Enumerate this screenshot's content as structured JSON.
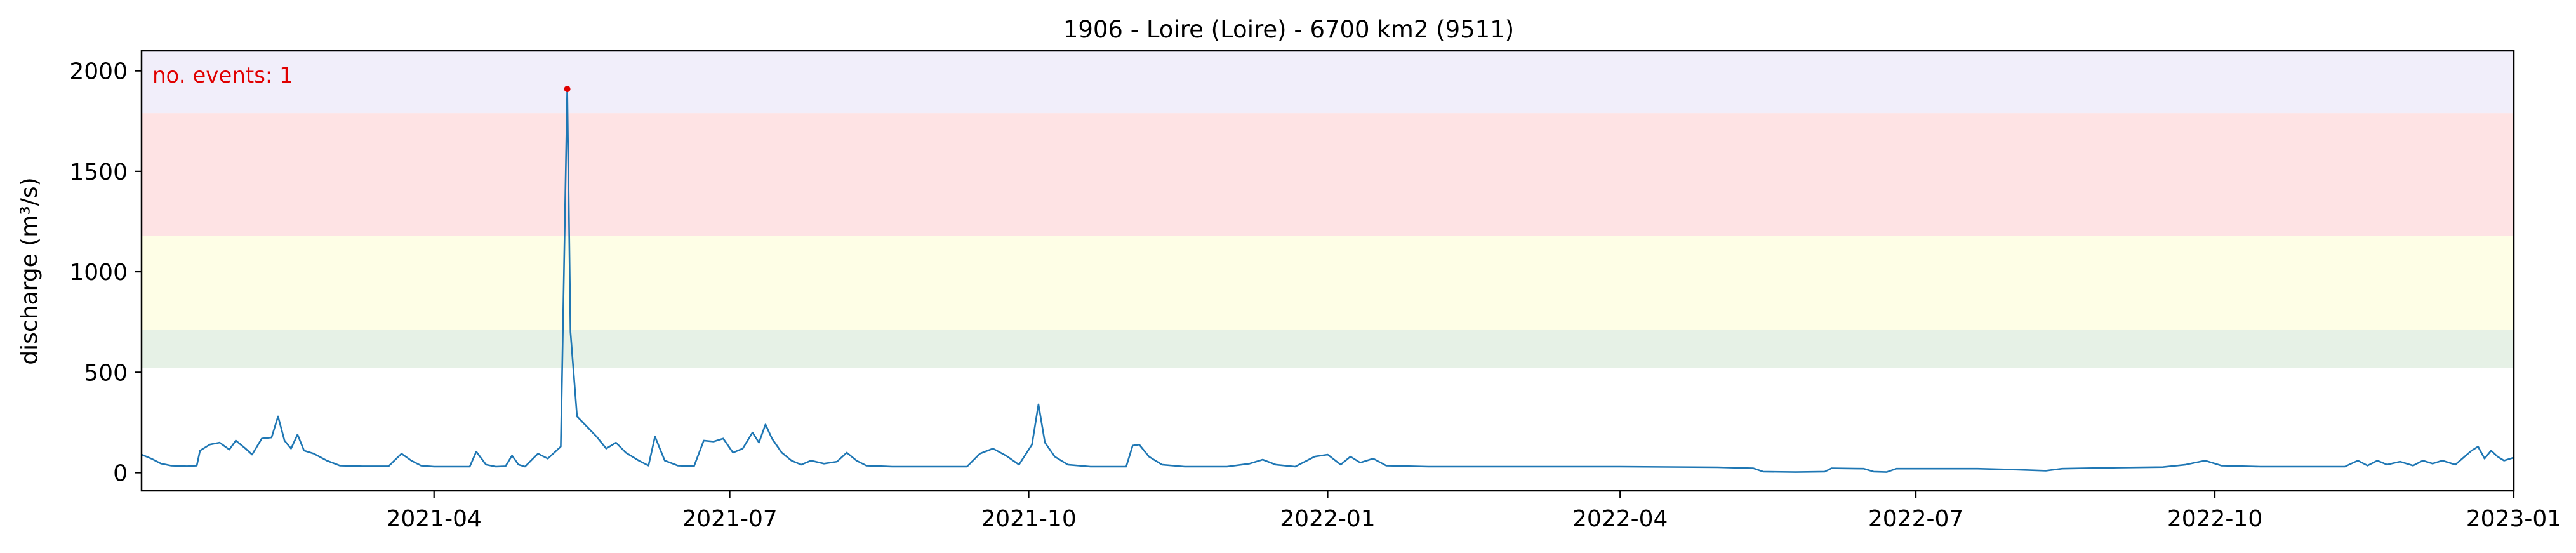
{
  "chart_data": {
    "type": "line",
    "title": "1906 - Loire (Loire) - 6700 km2 (9511)",
    "xlabel": "",
    "ylabel": "discharge (m³/s)",
    "x_range": [
      "2021-01-01",
      "2023-01-01"
    ],
    "ylim": [
      -90,
      2100
    ],
    "y_ticks": [
      0,
      500,
      1000,
      1500,
      2000
    ],
    "x_ticks": [
      "2021-04-01",
      "2021-07-01",
      "2021-10-01",
      "2022-01-01",
      "2022-04-01",
      "2022-07-01",
      "2022-10-01",
      "2023-01-01"
    ],
    "x_tick_labels": [
      "2021-04",
      "2021-07",
      "2021-10",
      "2022-01",
      "2022-04",
      "2022-07",
      "2022-10",
      "2023-01"
    ],
    "grid": false,
    "bands": [
      {
        "from": 520,
        "to": 710,
        "color": "#e6f1e6"
      },
      {
        "from": 710,
        "to": 1180,
        "color": "#fefee6"
      },
      {
        "from": 1180,
        "to": 1790,
        "color": "#fee3e4"
      },
      {
        "from": 1790,
        "to": 2100,
        "color": "#f1eefa"
      }
    ],
    "annotation": {
      "text": "no. events: 1",
      "color": "#e00000",
      "position": "top-left"
    },
    "event_points": [
      {
        "date": "2021-05-12",
        "value": 1910
      }
    ],
    "series": [
      {
        "color": "#1f77b4",
        "points": [
          [
            "2021-01-01",
            90
          ],
          [
            "2021-01-04",
            70
          ],
          [
            "2021-01-07",
            45
          ],
          [
            "2021-01-10",
            35
          ],
          [
            "2021-01-15",
            32
          ],
          [
            "2021-01-18",
            35
          ],
          [
            "2021-01-19",
            110
          ],
          [
            "2021-01-22",
            140
          ],
          [
            "2021-01-25",
            150
          ],
          [
            "2021-01-28",
            115
          ],
          [
            "2021-01-30",
            160
          ],
          [
            "2021-02-02",
            120
          ],
          [
            "2021-02-04",
            90
          ],
          [
            "2021-02-07",
            170
          ],
          [
            "2021-02-10",
            175
          ],
          [
            "2021-02-12",
            280
          ],
          [
            "2021-02-14",
            160
          ],
          [
            "2021-02-16",
            120
          ],
          [
            "2021-02-18",
            190
          ],
          [
            "2021-02-20",
            110
          ],
          [
            "2021-02-23",
            95
          ],
          [
            "2021-02-27",
            60
          ],
          [
            "2021-03-03",
            35
          ],
          [
            "2021-03-10",
            32
          ],
          [
            "2021-03-18",
            32
          ],
          [
            "2021-03-22",
            95
          ],
          [
            "2021-03-25",
            60
          ],
          [
            "2021-03-28",
            35
          ],
          [
            "2021-04-01",
            30
          ],
          [
            "2021-04-12",
            30
          ],
          [
            "2021-04-14",
            105
          ],
          [
            "2021-04-17",
            40
          ],
          [
            "2021-04-20",
            30
          ],
          [
            "2021-04-23",
            32
          ],
          [
            "2021-04-25",
            85
          ],
          [
            "2021-04-27",
            40
          ],
          [
            "2021-04-29",
            30
          ],
          [
            "2021-05-03",
            95
          ],
          [
            "2021-05-06",
            70
          ],
          [
            "2021-05-08",
            100
          ],
          [
            "2021-05-10",
            130
          ],
          [
            "2021-05-12",
            1910
          ],
          [
            "2021-05-13",
            700
          ],
          [
            "2021-05-15",
            280
          ],
          [
            "2021-05-18",
            230
          ],
          [
            "2021-05-21",
            180
          ],
          [
            "2021-05-24",
            120
          ],
          [
            "2021-05-27",
            150
          ],
          [
            "2021-05-30",
            100
          ],
          [
            "2021-06-03",
            60
          ],
          [
            "2021-06-06",
            35
          ],
          [
            "2021-06-08",
            180
          ],
          [
            "2021-06-11",
            60
          ],
          [
            "2021-06-15",
            35
          ],
          [
            "2021-06-20",
            32
          ],
          [
            "2021-06-23",
            160
          ],
          [
            "2021-06-26",
            155
          ],
          [
            "2021-06-29",
            170
          ],
          [
            "2021-07-02",
            100
          ],
          [
            "2021-07-05",
            120
          ],
          [
            "2021-07-08",
            200
          ],
          [
            "2021-07-10",
            150
          ],
          [
            "2021-07-12",
            240
          ],
          [
            "2021-07-14",
            170
          ],
          [
            "2021-07-17",
            100
          ],
          [
            "2021-07-20",
            60
          ],
          [
            "2021-07-23",
            40
          ],
          [
            "2021-07-26",
            60
          ],
          [
            "2021-07-30",
            45
          ],
          [
            "2021-08-03",
            55
          ],
          [
            "2021-08-06",
            100
          ],
          [
            "2021-08-09",
            60
          ],
          [
            "2021-08-12",
            35
          ],
          [
            "2021-08-20",
            30
          ],
          [
            "2021-09-05",
            30
          ],
          [
            "2021-09-12",
            30
          ],
          [
            "2021-09-16",
            95
          ],
          [
            "2021-09-20",
            120
          ],
          [
            "2021-09-24",
            85
          ],
          [
            "2021-09-28",
            40
          ],
          [
            "2021-10-02",
            140
          ],
          [
            "2021-10-04",
            340
          ],
          [
            "2021-10-06",
            150
          ],
          [
            "2021-10-09",
            80
          ],
          [
            "2021-10-13",
            40
          ],
          [
            "2021-10-20",
            30
          ],
          [
            "2021-10-31",
            30
          ],
          [
            "2021-11-02",
            135
          ],
          [
            "2021-11-04",
            140
          ],
          [
            "2021-11-07",
            80
          ],
          [
            "2021-11-11",
            40
          ],
          [
            "2021-11-18",
            30
          ],
          [
            "2021-12-01",
            30
          ],
          [
            "2021-12-08",
            45
          ],
          [
            "2021-12-12",
            65
          ],
          [
            "2021-12-16",
            40
          ],
          [
            "2021-12-22",
            30
          ],
          [
            "2021-12-28",
            80
          ],
          [
            "2022-01-01",
            90
          ],
          [
            "2022-01-05",
            40
          ],
          [
            "2022-01-08",
            80
          ],
          [
            "2022-01-11",
            50
          ],
          [
            "2022-01-15",
            70
          ],
          [
            "2022-01-19",
            35
          ],
          [
            "2022-02-01",
            30
          ],
          [
            "2022-03-01",
            30
          ],
          [
            "2022-04-01",
            30
          ],
          [
            "2022-05-01",
            27
          ],
          [
            "2022-05-12",
            22
          ],
          [
            "2022-05-15",
            5
          ],
          [
            "2022-05-25",
            3
          ],
          [
            "2022-06-03",
            5
          ],
          [
            "2022-06-05",
            22
          ],
          [
            "2022-06-15",
            20
          ],
          [
            "2022-06-18",
            5
          ],
          [
            "2022-06-22",
            3
          ],
          [
            "2022-06-25",
            20
          ],
          [
            "2022-07-01",
            20
          ],
          [
            "2022-07-20",
            20
          ],
          [
            "2022-08-01",
            15
          ],
          [
            "2022-08-10",
            10
          ],
          [
            "2022-08-15",
            20
          ],
          [
            "2022-09-01",
            25
          ],
          [
            "2022-09-15",
            28
          ],
          [
            "2022-09-22",
            40
          ],
          [
            "2022-09-28",
            60
          ],
          [
            "2022-10-03",
            35
          ],
          [
            "2022-10-15",
            30
          ],
          [
            "2022-11-10",
            30
          ],
          [
            "2022-11-14",
            60
          ],
          [
            "2022-11-17",
            35
          ],
          [
            "2022-11-20",
            60
          ],
          [
            "2022-11-23",
            40
          ],
          [
            "2022-11-27",
            55
          ],
          [
            "2022-12-01",
            35
          ],
          [
            "2022-12-04",
            60
          ],
          [
            "2022-12-07",
            45
          ],
          [
            "2022-12-10",
            60
          ],
          [
            "2022-12-14",
            40
          ],
          [
            "2022-12-19",
            110
          ],
          [
            "2022-12-21",
            130
          ],
          [
            "2022-12-23",
            70
          ],
          [
            "2022-12-25",
            110
          ],
          [
            "2022-12-27",
            80
          ],
          [
            "2022-12-29",
            60
          ],
          [
            "2023-01-01",
            75
          ]
        ]
      }
    ]
  }
}
